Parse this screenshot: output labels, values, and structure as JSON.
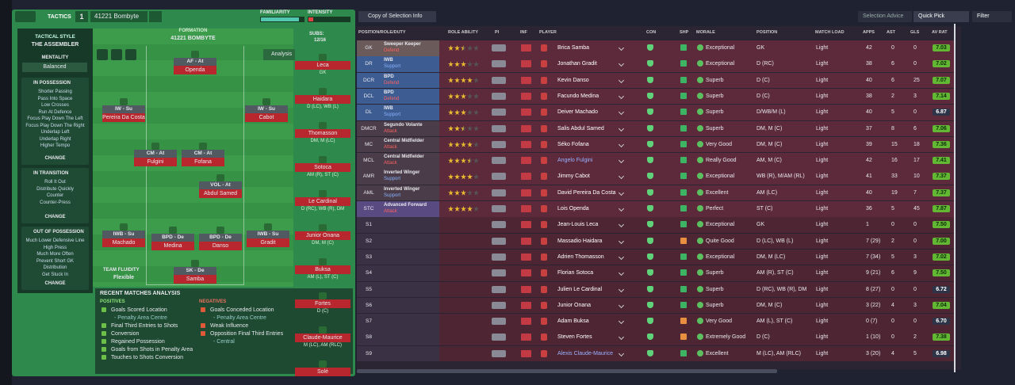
{
  "header": {
    "tactics_label": "TACTICS",
    "slot": "1",
    "tactic_name": "41221 Bombyte",
    "familiarity_label": "FAMILIARITY",
    "familiarity": 88,
    "intensity_label": "INTENSITY",
    "intensity": 12
  },
  "toolbar": {
    "view": "Copy of Selection Info",
    "buttons": [
      "Selection Advice",
      "Quick Pick",
      "Filter"
    ]
  },
  "style_panel": {
    "style_label": "TACTICAL STYLE",
    "style": "THE ASSEMBLER",
    "mentality_label": "MENTALITY",
    "mentality": "Balanced",
    "change": "CHANGE",
    "sections": [
      {
        "title": "IN POSSESSION",
        "items": [
          "Shorter Passing",
          "Pass Into Space",
          "Low Crosses",
          "Run At Defence",
          "Focus Play Down The Left",
          "Focus Play Down The Right",
          "Underlap Left",
          "Underlap Right",
          "Higher Tempo"
        ]
      },
      {
        "title": "IN TRANSITION",
        "items": [
          "Roll It Out",
          "Distribute Quickly",
          "Counter",
          "Counter-Press"
        ]
      },
      {
        "title": "OUT OF POSSESSION",
        "items": [
          "Much Lower Defensive Line",
          "High Press",
          "Much More Often",
          "Prevent Short GK",
          "Distribution",
          "Get Stuck In"
        ]
      }
    ]
  },
  "pitch": {
    "formation_label": "FORMATION",
    "formation": "41221 BOMBYTE",
    "subs_label": "SUBS:",
    "subs": "12/16",
    "analysis": "Analysis",
    "fluidity_label": "TEAM FLUIDITY",
    "fluidity": "Flexible",
    "players": [
      {
        "role": "AF - At",
        "name": "Openda"
      },
      {
        "role": "IW - Su",
        "name": "Pereira Da Costa"
      },
      {
        "role": "IW - Su",
        "name": "Cabot"
      },
      {
        "role": "CM - At",
        "name": "Fulgini"
      },
      {
        "role": "CM - At",
        "name": "Fofana"
      },
      {
        "role": "VOL - At",
        "name": "Abdul Samed"
      },
      {
        "role": "IWB - Su",
        "name": "Machado"
      },
      {
        "role": "BPD - De",
        "name": "Medina"
      },
      {
        "role": "BPD - De",
        "name": "Danso"
      },
      {
        "role": "IWB - Su",
        "name": "Gradit"
      },
      {
        "role": "SK - De",
        "name": "Samba"
      }
    ]
  },
  "subs": [
    {
      "name": "Leca",
      "pos": "GK"
    },
    {
      "name": "Haidara",
      "pos": "D (LC), WB (L)"
    },
    {
      "name": "Thomasson",
      "pos": "DM, M (LC)"
    },
    {
      "name": "Sotoca",
      "pos": "AM (R), ST (C)"
    },
    {
      "name": "Le Cardinal",
      "pos": "D (RC), WB (R), DM"
    },
    {
      "name": "Junior Onana",
      "pos": "DM, M (C)"
    },
    {
      "name": "Buksa",
      "pos": "AM (L), ST (C)"
    },
    {
      "name": "Fortes",
      "pos": "D (C)"
    },
    {
      "name": "Claude-Maurice",
      "pos": "M (LC), AM (RLC)"
    },
    {
      "name": "Solé",
      "pos": ""
    }
  ],
  "analysis": {
    "title": "RECENT MATCHES ANALYSIS",
    "positives_label": "POSITIVES",
    "negatives_label": "NEGATIVES",
    "positives": [
      {
        "text": "Goals Scored Location",
        "sub": "- Penalty Area Centre"
      },
      {
        "text": "Final Third Entries to Shots"
      },
      {
        "text": "Conversion"
      },
      {
        "text": "Regained Possession"
      },
      {
        "text": "Goals from Shots in Penalty Area"
      },
      {
        "text": "Touches to Shots Conversion"
      }
    ],
    "negatives": [
      {
        "text": "Goals Conceded Location",
        "sub": "- Penalty Area Centre"
      },
      {
        "text": "Weak Influence"
      },
      {
        "text": "Opposition Final Third Entries",
        "sub": "- Central"
      }
    ]
  },
  "table": {
    "columns": [
      "POSITION/ROLE/DUTY",
      "ROLE ABILITY",
      "PI",
      "INF",
      "PLAYER",
      "CON",
      "SHP",
      "MORALE",
      "POSITION",
      "MATCH LOAD",
      "APPS",
      "AST",
      "GLS",
      "AV RAT"
    ],
    "rows": [
      {
        "slot": "GK",
        "role": "Sweeper Keeper",
        "duty": "Defend",
        "stars": 2.5,
        "player": "Brica Samba",
        "morale": "Exceptional",
        "position": "GK",
        "load": "Light",
        "apps": "42",
        "ast": "0",
        "gls": "0",
        "rating": "7.03"
      },
      {
        "slot": "DR",
        "role": "IWB",
        "duty": "Support",
        "stars": 3,
        "player": "Jonathan Gradit",
        "morale": "Exceptional",
        "position": "D (RC)",
        "load": "Light",
        "apps": "38",
        "ast": "6",
        "gls": "0",
        "rating": "7.02"
      },
      {
        "slot": "DCR",
        "role": "BPD",
        "duty": "Defend",
        "stars": 4,
        "player": "Kevin Danso",
        "morale": "Superb",
        "position": "D (C)",
        "load": "Light",
        "apps": "40",
        "ast": "6",
        "gls": "25",
        "rating": "7.07"
      },
      {
        "slot": "DCL",
        "role": "BPD",
        "duty": "Defend",
        "stars": 3,
        "player": "Facundo Medina",
        "morale": "Superb",
        "position": "D (C)",
        "load": "Light",
        "apps": "38",
        "ast": "2",
        "gls": "3",
        "rating": "7.14"
      },
      {
        "slot": "DL",
        "role": "IWB",
        "duty": "Support",
        "stars": 3,
        "player": "Deiver Machado",
        "morale": "Superb",
        "position": "D/WB/M (L)",
        "load": "Light",
        "apps": "40",
        "ast": "5",
        "gls": "0",
        "rating": "6.87"
      },
      {
        "slot": "DMCR",
        "role": "Segundo Volante",
        "duty": "Attack",
        "stars": 2.5,
        "player": "Salis Abdul Samed",
        "morale": "Superb",
        "position": "DM, M (C)",
        "load": "Light",
        "apps": "37",
        "ast": "8",
        "gls": "6",
        "rating": "7.06"
      },
      {
        "slot": "MC",
        "role": "Central Midfielder",
        "duty": "Attack",
        "stars": 4,
        "player": "Séko Fofana",
        "morale": "Very Good",
        "position": "DM, M (C)",
        "load": "Light",
        "apps": "39",
        "ast": "15",
        "gls": "18",
        "rating": "7.36"
      },
      {
        "slot": "MCL",
        "role": "Central Midfielder",
        "duty": "Attack",
        "stars": 3.5,
        "player": "Angelo Fulgini",
        "morale": "Really Good",
        "position": "AM, M (C)",
        "load": "Light",
        "apps": "42",
        "ast": "16",
        "gls": "17",
        "rating": "7.41"
      },
      {
        "slot": "AMR",
        "role": "Inverted Winger",
        "duty": "Support",
        "stars": 4,
        "player": "Jimmy Cabot",
        "morale": "Exceptional",
        "position": "WB (R), M/AM (RL)",
        "load": "Light",
        "apps": "41",
        "ast": "33",
        "gls": "10",
        "rating": "7.37"
      },
      {
        "slot": "AML",
        "role": "Inverted Winger",
        "duty": "Support",
        "stars": 3,
        "player": "David Pereira Da Costa",
        "morale": "Excellent",
        "position": "AM (LC)",
        "load": "Light",
        "apps": "40",
        "ast": "19",
        "gls": "7",
        "rating": "7.37"
      },
      {
        "slot": "STC",
        "role": "Advanced Forward",
        "duty": "Attack",
        "stars": 4,
        "player": "Lois Openda",
        "morale": "Perfect",
        "position": "ST (C)",
        "load": "Light",
        "apps": "36",
        "ast": "5",
        "gls": "45",
        "rating": "7.87"
      },
      {
        "slot": "S1",
        "player": "Jean-Louis Leca",
        "morale": "Exceptional",
        "position": "GK",
        "load": "Light",
        "apps": "1",
        "ast": "0",
        "gls": "0",
        "rating": "7.50"
      },
      {
        "slot": "S2",
        "player": "Massadio Haidara",
        "morale": "Quite Good",
        "position": "D (LC), WB (L)",
        "load": "Light",
        "apps": "7 (29)",
        "ast": "2",
        "gls": "0",
        "rating": "7.00"
      },
      {
        "slot": "S3",
        "player": "Adrien Thomasson",
        "morale": "Exceptional",
        "position": "DM, M (LC)",
        "load": "Light",
        "apps": "7 (34)",
        "ast": "5",
        "gls": "3",
        "rating": "7.02"
      },
      {
        "slot": "S4",
        "player": "Florian Sotoca",
        "morale": "Superb",
        "position": "AM (R), ST (C)",
        "load": "Light",
        "apps": "9 (21)",
        "ast": "6",
        "gls": "9",
        "rating": "7.50"
      },
      {
        "slot": "S5",
        "player": "Julien Le Cardinal",
        "morale": "Superb",
        "position": "D (RC), WB (R), DM",
        "load": "Light",
        "apps": "8 (27)",
        "ast": "0",
        "gls": "0",
        "rating": "6.72"
      },
      {
        "slot": "S6",
        "player": "Junior Onana",
        "morale": "Superb",
        "position": "DM, M (C)",
        "load": "Light",
        "apps": "3 (22)",
        "ast": "4",
        "gls": "3",
        "rating": "7.04"
      },
      {
        "slot": "S7",
        "player": "Adam Buksa",
        "morale": "Very Good",
        "position": "AM (L), ST (C)",
        "load": "Light",
        "apps": "0 (7)",
        "ast": "0",
        "gls": "0",
        "rating": "6.70"
      },
      {
        "slot": "S8",
        "player": "Steven Fortes",
        "morale": "Extremely Good",
        "position": "D (C)",
        "load": "Light",
        "apps": "1 (10)",
        "ast": "0",
        "gls": "2",
        "rating": "7.38"
      },
      {
        "slot": "S9",
        "player": "Alexis Claude-Maurice",
        "morale": "Excellent",
        "position": "M (LC), AM (RLC)",
        "load": "Light",
        "apps": "3 (20)",
        "ast": "4",
        "gls": "5",
        "rating": "6.98"
      }
    ]
  }
}
